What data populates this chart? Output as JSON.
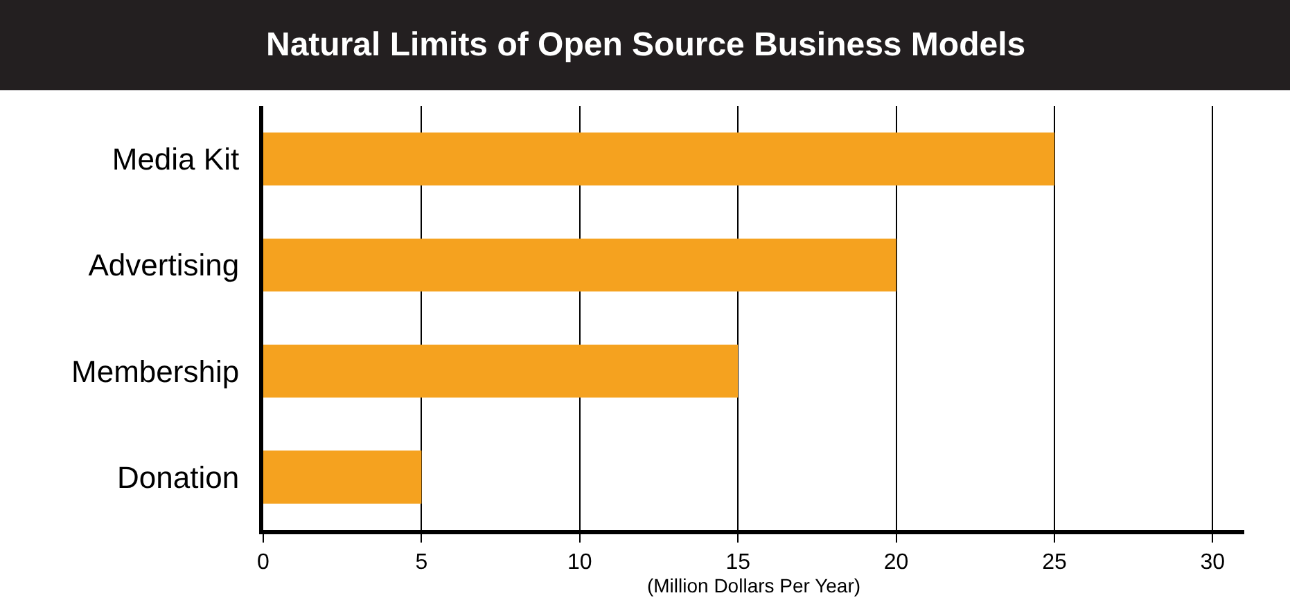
{
  "chart_data": {
    "type": "bar",
    "orientation": "horizontal",
    "title": "Natural Limits of Open Source Business Models",
    "xlabel": "(Million Dollars Per Year)",
    "categories": [
      "Media Kit",
      "Advertising",
      "Membership",
      "Donation"
    ],
    "values": [
      25,
      20,
      15,
      5
    ],
    "color": "#f5a21f",
    "xlim": [
      0,
      31
    ],
    "xticks": [
      0,
      5,
      10,
      15,
      20,
      25,
      30
    ],
    "grid": "x"
  }
}
